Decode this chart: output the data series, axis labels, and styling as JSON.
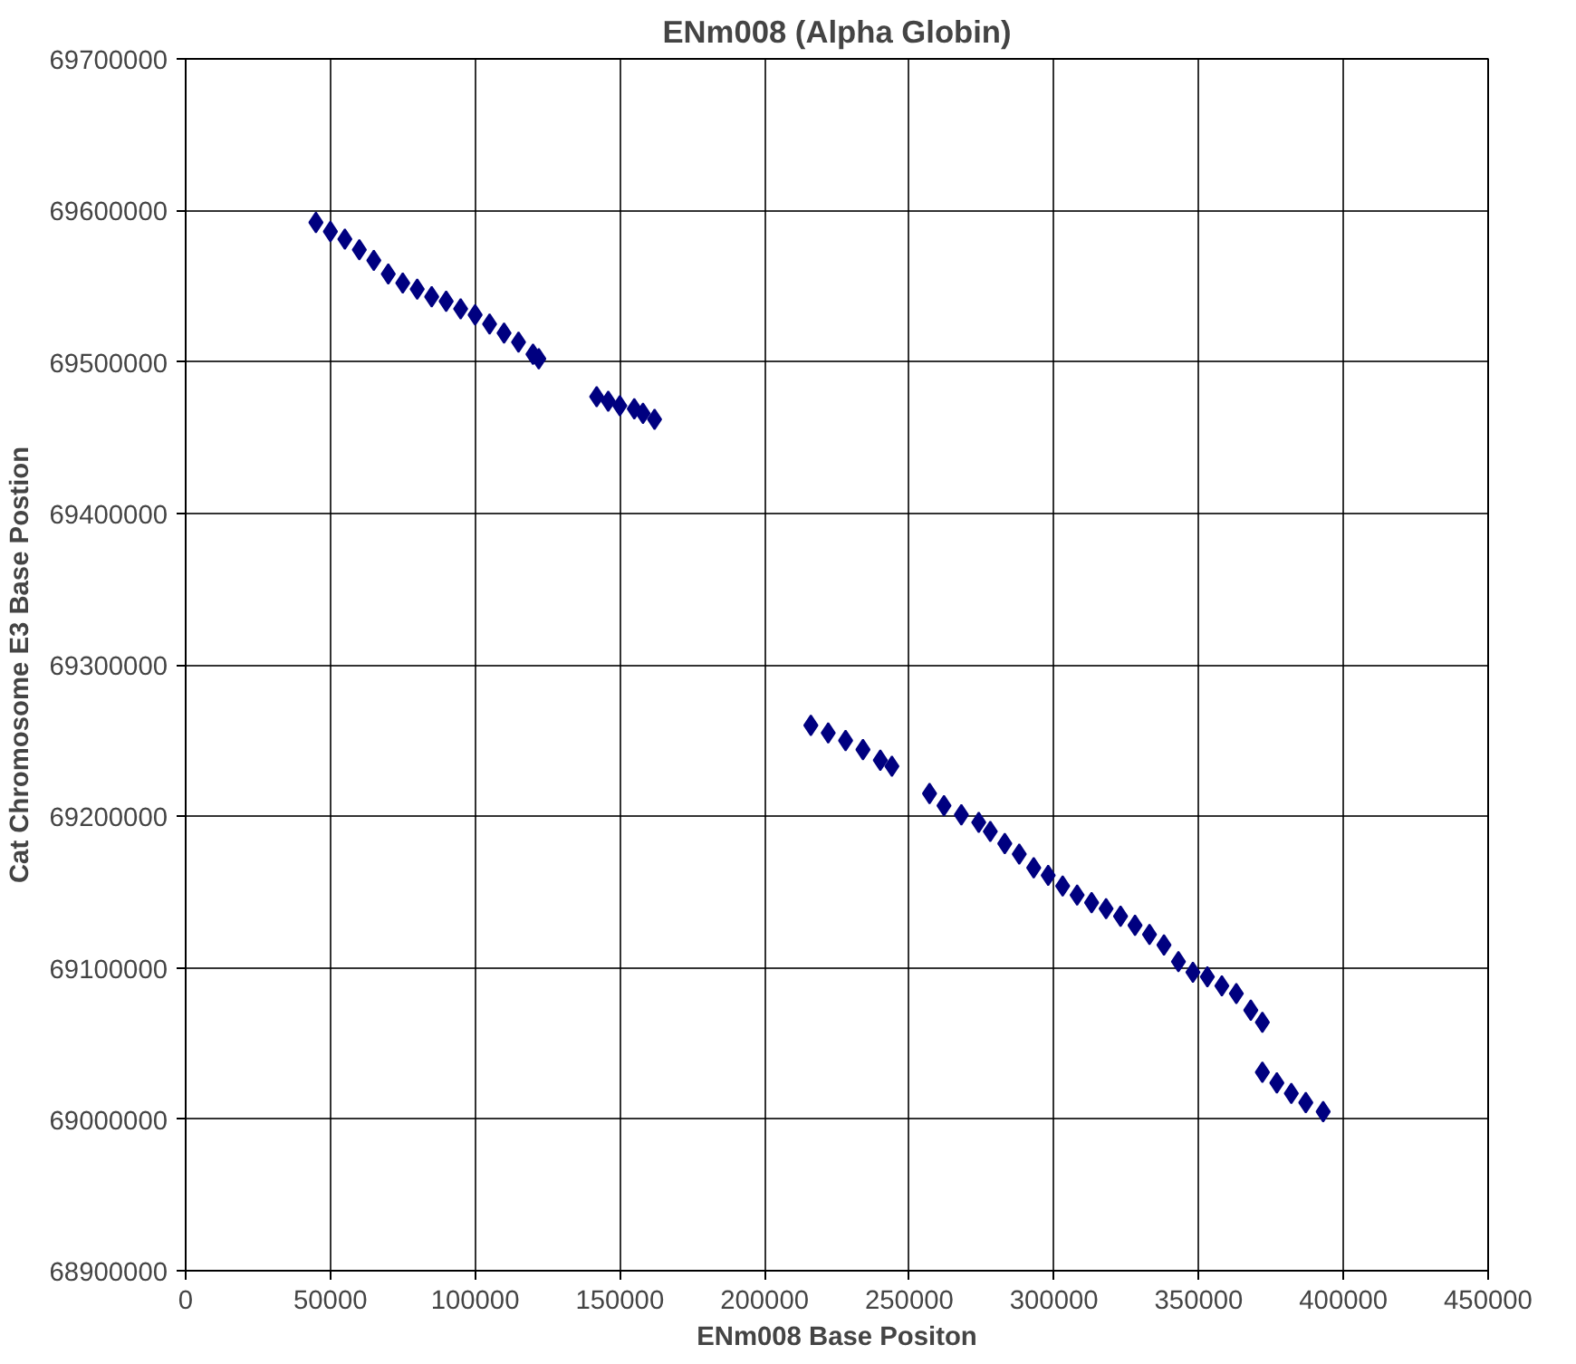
{
  "chart_data": {
    "type": "scatter",
    "title": "ENm008 (Alpha Globin)",
    "xlabel": "ENm008 Base Positon",
    "ylabel": "Cat Chromosome E3 Base Postion",
    "xlim": [
      0,
      450000
    ],
    "xticks": [
      0,
      50000,
      100000,
      150000,
      200000,
      250000,
      300000,
      350000,
      400000,
      450000
    ],
    "ylim": [
      68900000,
      69700000
    ],
    "yticks": [
      68900000,
      69000000,
      69100000,
      69200000,
      69300000,
      69400000,
      69500000,
      69600000,
      69700000
    ],
    "grid": true,
    "marker": "diamond",
    "series": [
      {
        "color": "#000080",
        "x": [
          45000,
          50000,
          55000,
          60000,
          65000,
          70000,
          75000,
          80000,
          85000,
          90000,
          95000,
          100000,
          105000,
          110000,
          115000,
          120000,
          122000,
          142000,
          146000,
          150000,
          155000,
          158000,
          162000,
          216000,
          222000,
          228000,
          234000,
          240000,
          244000,
          257000,
          262000,
          268000,
          274000,
          278000,
          283000,
          288000,
          293000,
          298000,
          303000,
          308000,
          313000,
          318000,
          323000,
          328000,
          333000,
          338000,
          343000,
          348000,
          353000,
          358000,
          363000,
          368000,
          372000,
          372000,
          377000,
          382000,
          387000,
          393000
        ],
        "values": [
          69592000,
          69586000,
          69581000,
          69574000,
          69567000,
          69558000,
          69552000,
          69548000,
          69543000,
          69540000,
          69535000,
          69531000,
          69525000,
          69519000,
          69513000,
          69505000,
          69502000,
          69477000,
          69474000,
          69471000,
          69469000,
          69466000,
          69462000,
          69260000,
          69255000,
          69250000,
          69244000,
          69237000,
          69233000,
          69215000,
          69207000,
          69201000,
          69196000,
          69190000,
          69182000,
          69175000,
          69166000,
          69161000,
          69154000,
          69148000,
          69143000,
          69139000,
          69134000,
          69128000,
          69122000,
          69115000,
          69104000,
          69097000,
          69094000,
          69088000,
          69083000,
          69072000,
          69064000,
          69031000,
          69024000,
          69017000,
          69011000,
          69005000
        ]
      }
    ]
  }
}
